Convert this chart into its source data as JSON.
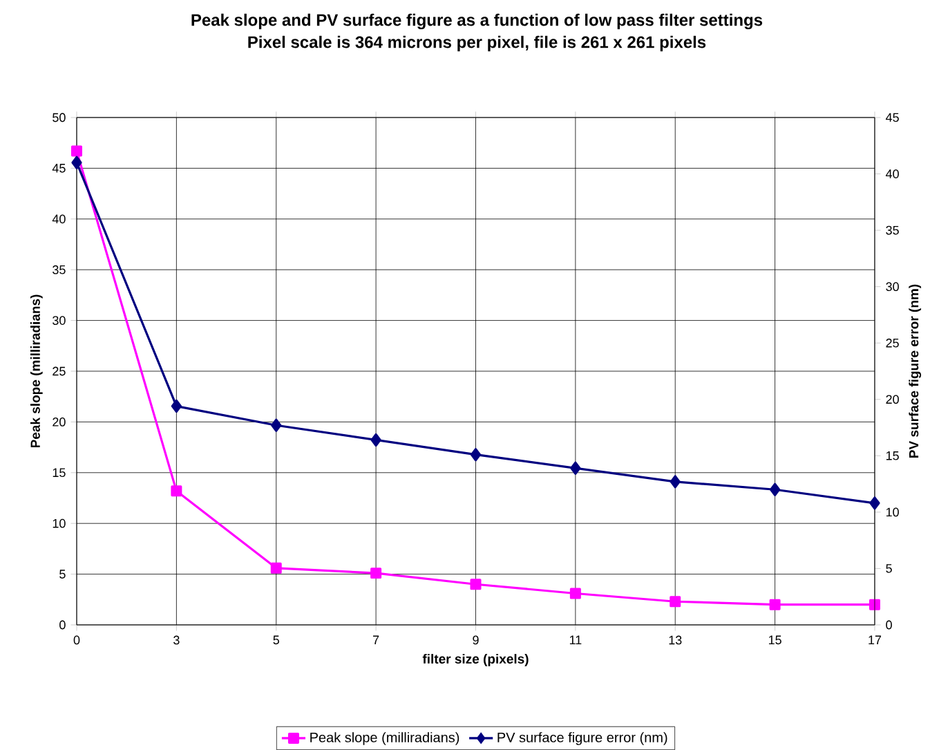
{
  "chart_data": {
    "type": "line",
    "title": "Peak slope and PV surface figure as a function of low pass filter settings",
    "subtitle": "Pixel scale is 364 microns per pixel, file is 261 x 261 pixels",
    "xlabel": "filter size (pixels)",
    "ylabel": "Peak slope (milliradians)",
    "y2label": "PV surface figure error (nm)",
    "categories": [
      "0",
      "3",
      "5",
      "7",
      "9",
      "11",
      "13",
      "15",
      "17"
    ],
    "series": [
      {
        "name": "Peak slope (milliradians)",
        "color": "#ff00ff",
        "marker": "square",
        "values": [
          46.7,
          13.2,
          5.6,
          5.1,
          4.0,
          3.1,
          2.3,
          2.0,
          2.0
        ]
      },
      {
        "name": "PV surface figure error (nm)",
        "color": "#000080",
        "marker": "diamond",
        "axis": "y2",
        "values": [
          41.0,
          19.4,
          17.7,
          16.4,
          15.1,
          13.9,
          12.7,
          12.0,
          10.8
        ]
      }
    ],
    "ylim": [
      0,
      50
    ],
    "yticks": [
      0,
      5,
      10,
      15,
      20,
      25,
      30,
      35,
      40,
      45,
      50
    ],
    "y2lim": [
      0,
      45
    ],
    "y2ticks": [
      0,
      5,
      10,
      15,
      20,
      25,
      30,
      35,
      40,
      45
    ],
    "grid": true,
    "legend": "bottom",
    "line_style": "solid"
  }
}
